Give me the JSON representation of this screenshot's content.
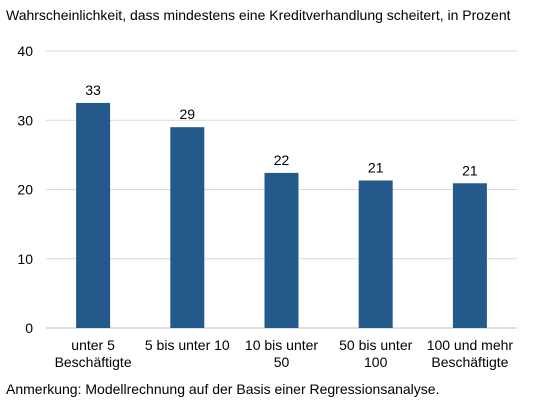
{
  "title": "Wahrscheinlichkeit, dass mindestens eine Kreditverhandlung scheitert, in Prozent",
  "footnote": "Anmerkung: Modellrechnung auf der Basis einer Regressionsanalyse.",
  "colors": {
    "bar": "#235a8b",
    "grid": "#d9d9d9",
    "axis": "#bfbfbf"
  },
  "chart_data": {
    "type": "bar",
    "title": "Wahrscheinlichkeit, dass mindestens eine Kreditverhandlung scheitert, in Prozent",
    "categories": [
      [
        "unter 5",
        "Beschäftigte"
      ],
      [
        "5 bis unter 10"
      ],
      [
        "10 bis unter",
        "50"
      ],
      [
        "50 bis unter",
        "100"
      ],
      [
        "100 und mehr",
        "Beschäftigte"
      ]
    ],
    "values": [
      32.5,
      29,
      22.4,
      21.3,
      20.9
    ],
    "data_labels": [
      "33",
      "29",
      "22",
      "21",
      "21"
    ],
    "ylim": [
      0,
      40
    ],
    "yticks": [
      0,
      10,
      20,
      30,
      40
    ],
    "grid": true,
    "xlabel": "",
    "ylabel": ""
  }
}
